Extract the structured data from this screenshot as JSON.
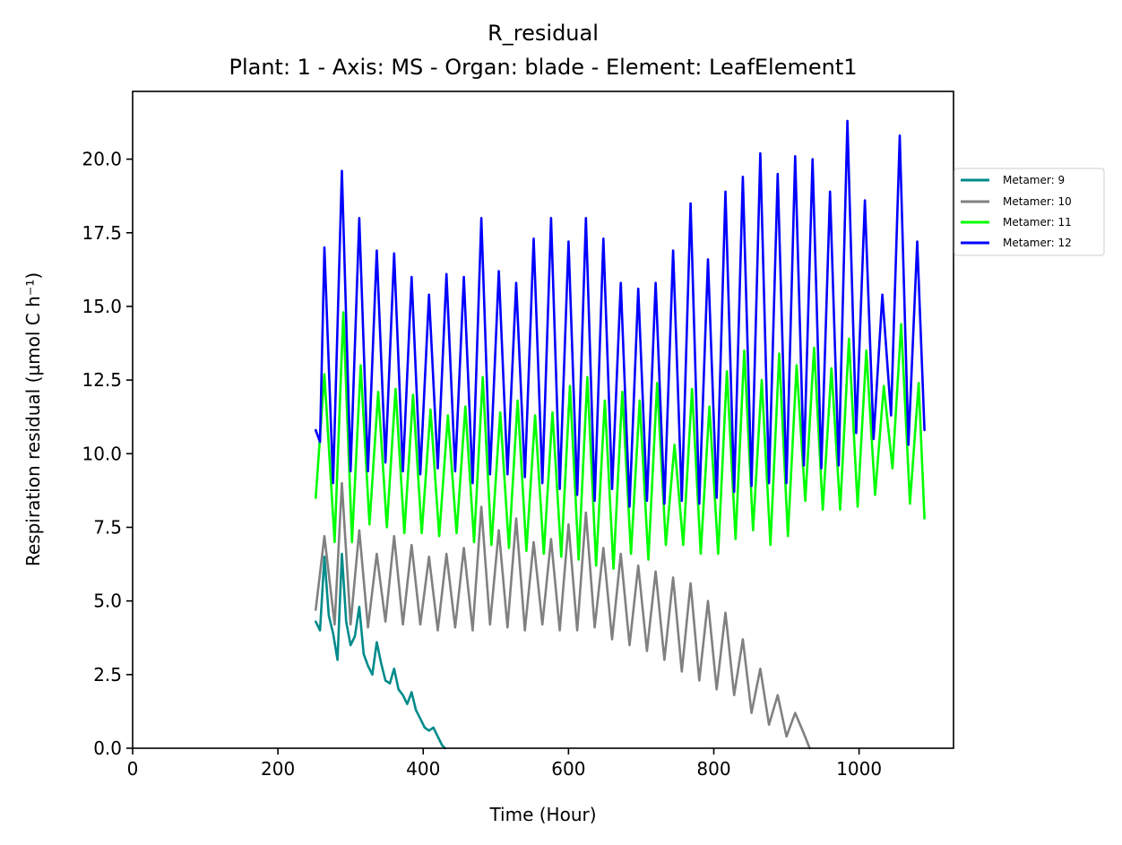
{
  "chart_data": {
    "type": "line",
    "title": "R_residual",
    "subtitle": "Plant: 1 - Axis: MS - Organ: blade - Element: LeafElement1",
    "xlabel": "Time (Hour)",
    "ylabel": "Respiration residual (µmol C h⁻¹)",
    "xlim": [
      0,
      1130
    ],
    "ylim": [
      0,
      22.3
    ],
    "xticks": [
      "0",
      "200",
      "400",
      "600",
      "800",
      "1000"
    ],
    "yticks": [
      "0.0",
      "2.5",
      "5.0",
      "7.5",
      "10.0",
      "12.5",
      "15.0",
      "17.5",
      "20.0"
    ],
    "grid": false,
    "legend_position": "right, outside plot",
    "series": [
      {
        "name": "Metamer: 9",
        "color": "#008b8b",
        "x": [
          252,
          258,
          264,
          270,
          276,
          282,
          288,
          294,
          300,
          306,
          312,
          318,
          324,
          330,
          336,
          342,
          348,
          354,
          360,
          366,
          372,
          378,
          384,
          390,
          396,
          402,
          408,
          414,
          420,
          426,
          430
        ],
        "y": [
          4.3,
          4.0,
          6.5,
          4.5,
          3.9,
          3.0,
          6.6,
          4.3,
          3.5,
          3.8,
          4.8,
          3.2,
          2.8,
          2.5,
          3.6,
          2.9,
          2.3,
          2.2,
          2.7,
          2.0,
          1.8,
          1.5,
          1.9,
          1.3,
          1.0,
          0.7,
          0.6,
          0.7,
          0.4,
          0.1,
          0.0
        ]
      },
      {
        "name": "Metamer: 10",
        "color": "#808080",
        "x": [
          252,
          264,
          278,
          288,
          300,
          312,
          324,
          336,
          348,
          360,
          372,
          384,
          396,
          408,
          420,
          432,
          444,
          456,
          468,
          480,
          492,
          504,
          516,
          528,
          540,
          552,
          564,
          576,
          588,
          600,
          612,
          624,
          636,
          648,
          660,
          672,
          684,
          696,
          708,
          720,
          732,
          744,
          756,
          768,
          780,
          792,
          804,
          816,
          828,
          840,
          852,
          864,
          876,
          888,
          900,
          912,
          924,
          932
        ],
        "y": [
          4.7,
          7.2,
          4.2,
          9.0,
          4.2,
          7.4,
          4.1,
          6.6,
          4.3,
          7.2,
          4.2,
          6.9,
          4.2,
          6.5,
          4.0,
          6.6,
          4.1,
          6.8,
          4.0,
          8.2,
          4.2,
          7.4,
          4.1,
          7.8,
          4.0,
          7.0,
          4.2,
          7.1,
          4.0,
          7.6,
          4.0,
          8.0,
          4.1,
          6.8,
          3.7,
          6.6,
          3.5,
          6.2,
          3.3,
          6.0,
          3.0,
          5.8,
          2.6,
          5.6,
          2.3,
          5.0,
          2.0,
          4.6,
          1.8,
          3.7,
          1.2,
          2.7,
          0.8,
          1.8,
          0.4,
          1.2,
          0.5,
          0.0
        ]
      },
      {
        "name": "Metamer: 11",
        "color": "#00ff00",
        "x": [
          252,
          264,
          278,
          290,
          302,
          314,
          326,
          338,
          350,
          362,
          374,
          386,
          398,
          410,
          422,
          434,
          446,
          458,
          470,
          482,
          494,
          506,
          518,
          530,
          542,
          554,
          566,
          578,
          590,
          602,
          614,
          626,
          638,
          650,
          662,
          674,
          686,
          698,
          710,
          722,
          734,
          746,
          758,
          770,
          782,
          794,
          806,
          818,
          830,
          842,
          854,
          866,
          878,
          890,
          902,
          914,
          926,
          938,
          950,
          962,
          974,
          986,
          998,
          1010,
          1022,
          1034,
          1046,
          1058,
          1070,
          1082,
          1090
        ],
        "y": [
          8.5,
          12.7,
          7.0,
          14.8,
          7.0,
          13.0,
          7.6,
          12.1,
          7.5,
          12.2,
          7.3,
          12.0,
          7.3,
          11.5,
          7.2,
          11.3,
          7.3,
          11.6,
          7.0,
          12.6,
          6.9,
          11.4,
          6.8,
          11.8,
          6.7,
          11.3,
          6.6,
          11.4,
          6.5,
          12.3,
          6.4,
          12.6,
          6.2,
          11.8,
          6.1,
          12.1,
          6.6,
          11.8,
          6.4,
          12.4,
          6.9,
          10.3,
          6.9,
          12.2,
          6.6,
          11.6,
          6.6,
          12.8,
          7.1,
          13.5,
          7.4,
          12.5,
          6.9,
          13.4,
          7.2,
          13.0,
          8.4,
          13.6,
          8.1,
          12.9,
          8.1,
          13.9,
          8.2,
          13.5,
          8.6,
          12.3,
          9.5,
          14.4,
          8.3,
          12.4,
          7.8
        ]
      },
      {
        "name": "Metamer: 12",
        "color": "#0000ff",
        "x": [
          252,
          258,
          264,
          276,
          288,
          300,
          312,
          324,
          336,
          348,
          360,
          372,
          384,
          396,
          408,
          420,
          432,
          444,
          456,
          468,
          480,
          492,
          504,
          516,
          528,
          540,
          552,
          564,
          576,
          588,
          600,
          612,
          624,
          636,
          648,
          660,
          672,
          684,
          696,
          708,
          720,
          732,
          744,
          756,
          768,
          780,
          792,
          804,
          816,
          828,
          840,
          852,
          864,
          876,
          888,
          900,
          912,
          924,
          936,
          948,
          960,
          972,
          984,
          996,
          1008,
          1020,
          1032,
          1044,
          1056,
          1068,
          1080,
          1090
        ],
        "y": [
          10.8,
          10.4,
          17.0,
          9.0,
          19.6,
          9.4,
          18.0,
          9.4,
          16.9,
          9.7,
          16.8,
          9.4,
          16.0,
          9.3,
          15.4,
          9.5,
          16.1,
          9.4,
          16.0,
          9.0,
          18.0,
          9.3,
          16.2,
          9.3,
          15.8,
          9.2,
          17.3,
          9.0,
          18.0,
          8.8,
          17.2,
          8.6,
          18.0,
          8.4,
          17.3,
          8.8,
          15.8,
          8.2,
          15.6,
          8.4,
          15.8,
          8.3,
          16.9,
          8.4,
          18.5,
          8.3,
          16.6,
          8.5,
          18.9,
          8.7,
          19.4,
          8.9,
          20.2,
          9.0,
          19.5,
          9.0,
          20.1,
          9.6,
          20.0,
          9.5,
          18.9,
          9.6,
          21.3,
          10.7,
          18.6,
          10.5,
          15.4,
          11.3,
          20.8,
          10.3,
          17.2,
          10.8
        ]
      }
    ]
  }
}
